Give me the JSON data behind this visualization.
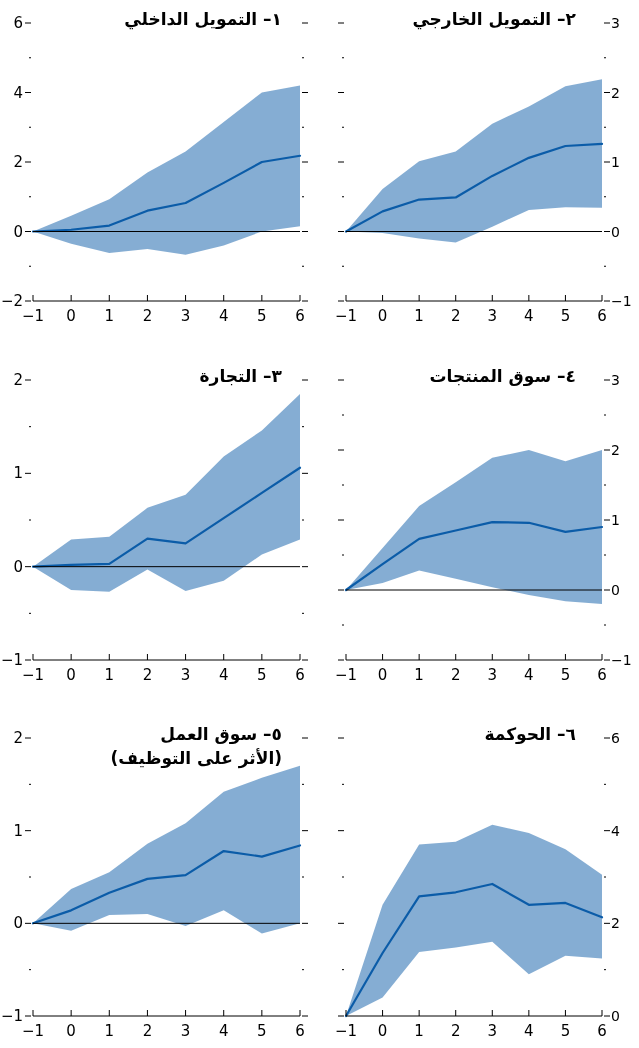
{
  "chart_data": [
    {
      "type": "line",
      "title": "١– التمويل الداخلي",
      "x": [
        -1,
        0,
        1,
        2,
        3,
        4,
        5,
        6
      ],
      "xlim": [
        -1,
        6
      ],
      "xticks": [
        -1,
        0,
        1,
        2,
        3,
        4,
        5,
        6
      ],
      "ylim": [
        -2,
        6
      ],
      "yticks": [
        -2,
        {
          "value": -1,
          "label": null
        },
        0,
        {
          "value": 1,
          "label": null
        },
        2,
        {
          "value": 3,
          "label": null
        },
        4,
        {
          "value": 5,
          "label": null
        },
        6
      ],
      "series": [
        {
          "color": "#0b5ca8",
          "values": [
            0,
            0.05,
            0.17,
            0.6,
            0.82,
            1.4,
            2.0,
            2.18
          ],
          "lower": [
            0,
            -0.35,
            -0.62,
            -0.5,
            -0.67,
            -0.4,
            0,
            0.15
          ],
          "upper": [
            0,
            0.45,
            0.93,
            1.7,
            2.3,
            3.15,
            4.0,
            4.2
          ]
        }
      ],
      "ref_lines": [
        {
          "axis": "y",
          "value": 0,
          "color": "#000000"
        }
      ]
    },
    {
      "type": "line",
      "title": "٢– التمويل الخارجي",
      "x": [
        -1,
        0,
        1,
        2,
        3,
        4,
        5,
        6
      ],
      "xlim": [
        -1,
        6
      ],
      "xticks": [
        -1,
        0,
        1,
        2,
        3,
        4,
        5,
        6
      ],
      "ylim": [
        -1,
        3
      ],
      "yticks": [
        -1,
        {
          "value": -0.5,
          "label": null
        },
        0,
        {
          "value": 0.5,
          "label": null
        },
        1,
        {
          "value": 1.5,
          "label": null
        },
        2,
        {
          "value": 2.5,
          "label": null
        },
        3
      ],
      "series": [
        {
          "color": "#0b5ca8",
          "values": [
            0,
            0.29,
            0.46,
            0.49,
            0.8,
            1.06,
            1.23,
            1.26
          ],
          "lower": [
            0,
            -0.02,
            -0.1,
            -0.16,
            0.07,
            0.31,
            0.35,
            0.34
          ],
          "upper": [
            0,
            0.61,
            1.01,
            1.15,
            1.55,
            1.8,
            2.09,
            2.19
          ]
        }
      ],
      "ref_lines": [
        {
          "axis": "y",
          "value": 0,
          "color": "#000000"
        }
      ]
    },
    {
      "type": "line",
      "title": "٣– التجارة",
      "x": [
        -1,
        0,
        1,
        2,
        3,
        4,
        5,
        6
      ],
      "xlim": [
        -1,
        6
      ],
      "xticks": [
        -1,
        0,
        1,
        2,
        3,
        4,
        5,
        6
      ],
      "ylim": [
        -1,
        2
      ],
      "yticks": [
        -1,
        {
          "value": -0.5,
          "label": null
        },
        0,
        {
          "value": 0.5,
          "label": null
        },
        1,
        {
          "value": 1.5,
          "label": null
        },
        2
      ],
      "series": [
        {
          "color": "#0b5ca8",
          "values": [
            0,
            0.02,
            0.03,
            0.3,
            0.25,
            0.52,
            0.79,
            1.06
          ],
          "lower": [
            0,
            -0.25,
            -0.27,
            -0.03,
            -0.26,
            -0.15,
            0.13,
            0.29
          ],
          "upper": [
            0,
            0.29,
            0.32,
            0.63,
            0.77,
            1.18,
            1.46,
            1.85
          ]
        }
      ],
      "ref_lines": [
        {
          "axis": "y",
          "value": 0,
          "color": "#000000"
        }
      ]
    },
    {
      "type": "line",
      "title": "٤– سوق المنتجات",
      "x": [
        -1,
        0,
        1,
        2,
        3,
        4,
        5,
        6
      ],
      "xlim": [
        -1,
        6
      ],
      "xticks": [
        -1,
        0,
        1,
        2,
        3,
        4,
        5,
        6
      ],
      "ylim": [
        -1,
        3
      ],
      "yticks": [
        -1,
        {
          "value": -0.5,
          "label": null
        },
        0,
        {
          "value": 0.5,
          "label": null
        },
        1,
        {
          "value": 1.5,
          "label": null
        },
        2,
        {
          "value": 2.5,
          "label": null
        },
        3
      ],
      "series": [
        {
          "color": "#0b5ca8",
          "values": [
            0,
            0.37,
            0.73,
            0.85,
            0.97,
            0.96,
            0.83,
            0.9
          ],
          "lower": [
            0,
            0.1,
            0.28,
            0.16,
            0.04,
            -0.07,
            -0.16,
            -0.2
          ],
          "upper": [
            0,
            0.6,
            1.2,
            1.54,
            1.89,
            2.0,
            1.84,
            2.0
          ]
        }
      ],
      "ref_lines": [
        {
          "axis": "y",
          "value": 0,
          "color": "#000000"
        }
      ]
    },
    {
      "type": "line",
      "title": "٥– سوق العمل\n(الأثر على التوظيف)",
      "x": [
        -1,
        0,
        1,
        2,
        3,
        4,
        5,
        6
      ],
      "xlim": [
        -1,
        6
      ],
      "xticks": [
        -1,
        0,
        1,
        2,
        3,
        4,
        5,
        6
      ],
      "ylim": [
        -1,
        2
      ],
      "yticks": [
        -1,
        {
          "value": -0.5,
          "label": null
        },
        0,
        {
          "value": 0.5,
          "label": null
        },
        1,
        {
          "value": 1.5,
          "label": null
        },
        2
      ],
      "series": [
        {
          "color": "#0b5ca8",
          "values": [
            0,
            0.14,
            0.33,
            0.48,
            0.52,
            0.78,
            0.72,
            0.84
          ],
          "lower": [
            0,
            -0.08,
            0.09,
            0.1,
            -0.03,
            0.14,
            -0.11,
            0
          ],
          "upper": [
            0,
            0.37,
            0.55,
            0.86,
            1.08,
            1.42,
            1.57,
            1.7
          ]
        }
      ],
      "ref_lines": [
        {
          "axis": "y",
          "value": 0,
          "color": "#000000"
        }
      ]
    },
    {
      "type": "line",
      "title": "٦– الحوكمة",
      "x": [
        -1,
        0,
        1,
        2,
        3,
        4,
        5,
        6
      ],
      "xlim": [
        -1,
        6
      ],
      "xticks": [
        -1,
        0,
        1,
        2,
        3,
        4,
        5,
        6
      ],
      "ylim": [
        0,
        6
      ],
      "yticks": [
        0,
        {
          "value": 1,
          "label": null
        },
        2,
        {
          "value": 3,
          "label": null
        },
        4,
        {
          "value": 5,
          "label": null
        },
        6
      ],
      "series": [
        {
          "color": "#0b5ca8",
          "values": [
            0,
            1.36,
            2.58,
            2.67,
            2.85,
            2.4,
            2.44,
            2.13
          ],
          "lower": [
            0,
            0.4,
            1.38,
            1.48,
            1.6,
            0.9,
            1.3,
            1.24
          ],
          "upper": [
            0,
            2.4,
            3.7,
            3.76,
            4.13,
            3.95,
            3.6,
            3.05
          ]
        }
      ]
    }
  ]
}
